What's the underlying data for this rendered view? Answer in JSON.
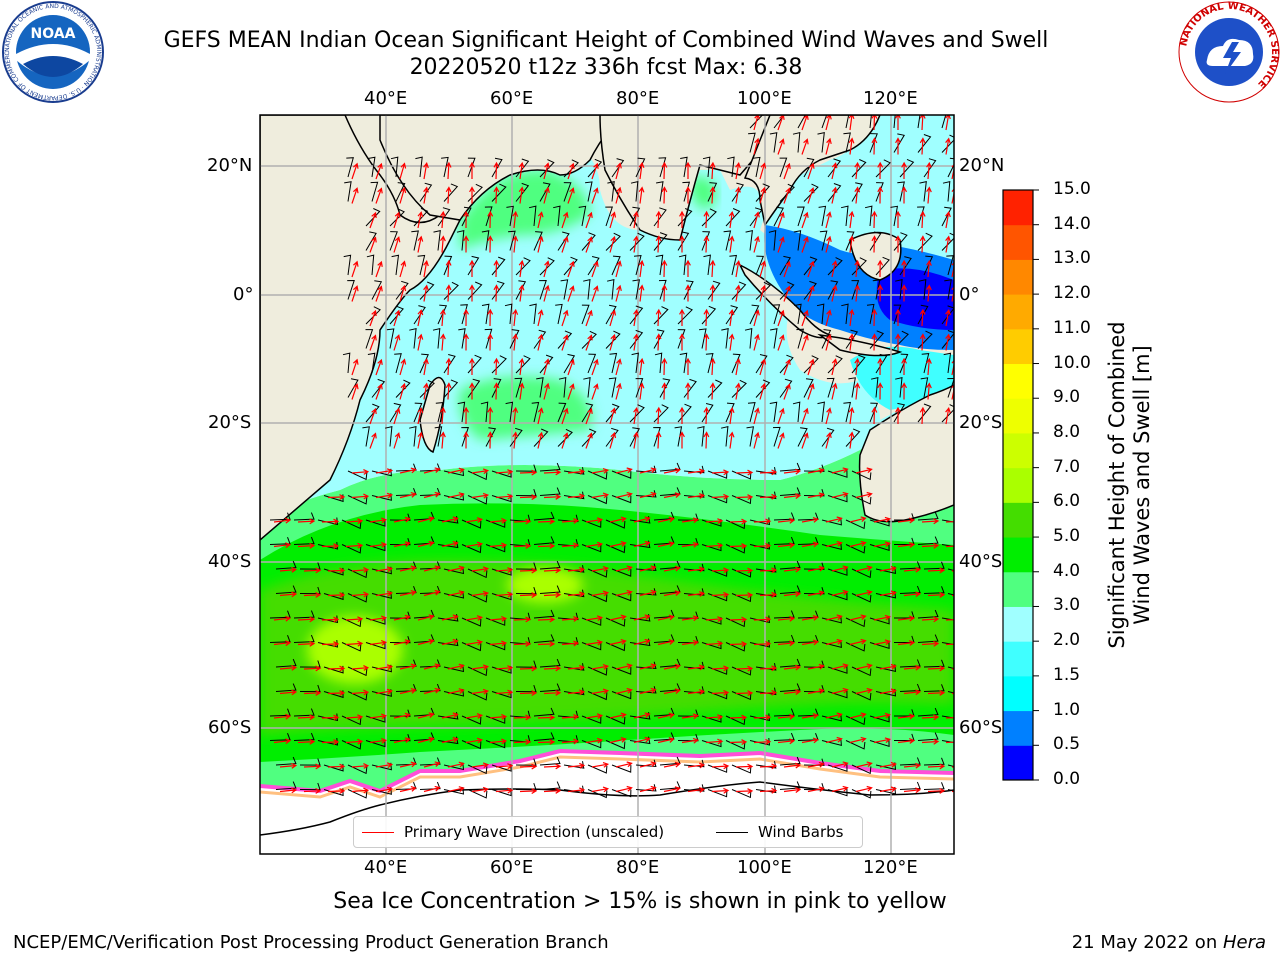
{
  "header": {
    "title_line1": "GEFS MEAN Indian Ocean Significant Height of Combined Wind Waves and Swell",
    "title_line2": "20220520 t12z 336h fcst   Max: 6.38"
  },
  "logos": {
    "noaa": {
      "center_text": "NOAA",
      "ring_text": "NATIONAL OCEANIC AND ATMOSPHERIC ADMINISTRATION · U.S. DEPARTMENT OF COMMERCE"
    },
    "nws": {
      "ring_text": "NATIONAL WEATHER SERVICE"
    }
  },
  "map": {
    "lon_ticks": [
      "40°E",
      "60°E",
      "80°E",
      "100°E",
      "120°E"
    ],
    "lat_ticks": [
      "20°N",
      "0°",
      "20°S",
      "40°S",
      "60°S"
    ],
    "colors": {
      "land": "#efeddd",
      "ice": "#ffffff",
      "wave_arrow": "#ff0000",
      "wind_barb": "#000000",
      "grid": "#b0b0b0"
    }
  },
  "colorbar": {
    "title_line1": "Significant Height of Combined",
    "title_line2": "Wind Waves and Swell [m]",
    "ticks": [
      "0.0",
      "0.5",
      "1.0",
      "1.5",
      "2.0",
      "3.0",
      "4.0",
      "5.0",
      "6.0",
      "7.0",
      "8.0",
      "9.0",
      "10.0",
      "11.0",
      "12.0",
      "13.0",
      "14.0",
      "15.0"
    ],
    "colors": [
      "#0000ff",
      "#0080ff",
      "#00ffff",
      "#40ffff",
      "#a0ffff",
      "#50ff80",
      "#00ee00",
      "#44dd00",
      "#aaff00",
      "#ccff00",
      "#eeff00",
      "#ffff00",
      "#ffcc00",
      "#ffaa00",
      "#ff8800",
      "#ff5500",
      "#ff2200"
    ]
  },
  "legend": {
    "wave_direction": "Primary Wave Direction (unscaled)",
    "wind_barbs": "Wind Barbs"
  },
  "caption": "Sea Ice Concentration > 15% is shown in pink to yellow",
  "footer": {
    "left": "NCEP/EMC/Verification Post Processing Product Generation Branch",
    "date": "21 May 2022 on ",
    "machine": "Hera"
  }
}
